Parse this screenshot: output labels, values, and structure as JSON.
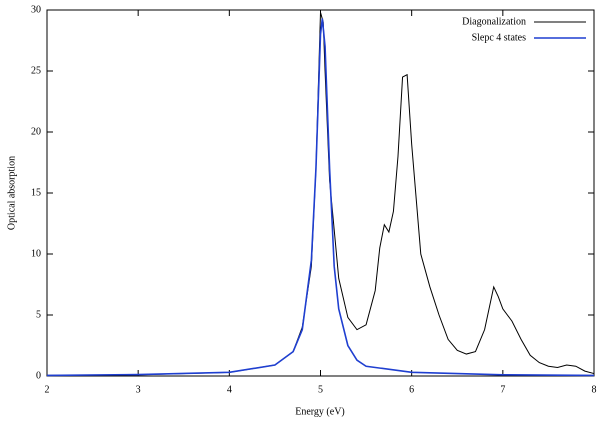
{
  "chart_data": {
    "type": "line",
    "x_label": "Energy (eV)",
    "y_label": "Optical absorption",
    "xlim": [
      2,
      8
    ],
    "xticks": [
      2,
      3,
      4,
      5,
      6,
      7,
      8
    ],
    "ylim": [
      0,
      30
    ],
    "yticks": [
      0,
      5,
      10,
      15,
      20,
      25,
      30
    ],
    "legend": "top-right",
    "series": [
      {
        "name": "Diagonalization",
        "color": "#000000",
        "x": [
          2,
          3,
          4,
          4.5,
          4.7,
          4.8,
          4.9,
          4.95,
          5.0,
          5.03,
          5.05,
          5.1,
          5.2,
          5.3,
          5.4,
          5.5,
          5.6,
          5.65,
          5.7,
          5.75,
          5.8,
          5.85,
          5.9,
          5.95,
          6.0,
          6.1,
          6.2,
          6.3,
          6.4,
          6.5,
          6.6,
          6.7,
          6.8,
          6.9,
          6.95,
          7.0,
          7.1,
          7.2,
          7.3,
          7.4,
          7.5,
          7.6,
          7.7,
          7.8,
          7.9,
          8.0
        ],
        "values": [
          0.05,
          0.1,
          0.3,
          0.9,
          2,
          4,
          9,
          17,
          29.8,
          29,
          25,
          16,
          8,
          4.8,
          3.8,
          4.2,
          7,
          10.5,
          12.4,
          11.8,
          13.5,
          18,
          24.5,
          24.7,
          19,
          10,
          7.3,
          5,
          3,
          2.1,
          1.8,
          2,
          3.8,
          7.3,
          6.5,
          5.5,
          4.5,
          3,
          1.7,
          1.1,
          0.8,
          0.7,
          0.9,
          0.8,
          0.4,
          0.2
        ]
      },
      {
        "name": "Slepc 4 states",
        "color": "#1f3fd0",
        "x": [
          2,
          3,
          4,
          4.5,
          4.7,
          4.8,
          4.9,
          4.95,
          5.0,
          5.02,
          5.05,
          5.1,
          5.15,
          5.2,
          5.3,
          5.4,
          5.5,
          6,
          7,
          8
        ],
        "values": [
          0.05,
          0.12,
          0.3,
          0.9,
          2,
          3.8,
          9.5,
          17,
          28,
          29.3,
          27,
          17,
          9,
          5.5,
          2.5,
          1.3,
          0.8,
          0.3,
          0.1,
          0.05
        ]
      }
    ]
  }
}
